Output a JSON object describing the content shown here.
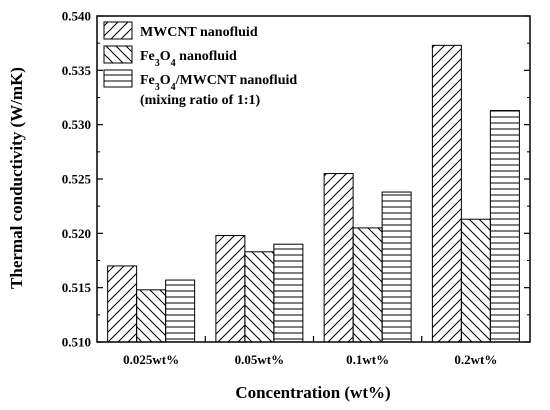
{
  "chart_data": {
    "type": "bar",
    "title": "",
    "xlabel": "Concentration (wt%)",
    "ylabel": "Thermal conductivity (W/mK)",
    "categories": [
      "0.025wt%",
      "0.05wt%",
      "0.1wt%",
      "0.2wt%"
    ],
    "series": [
      {
        "name": "MWCNT nanofluid",
        "values": [
          0.517,
          0.5198,
          0.5255,
          0.5373
        ],
        "pattern": "diagonal-up"
      },
      {
        "name": "Fe3O4 nanofluid",
        "values": [
          0.5148,
          0.5183,
          0.5205,
          0.5213
        ],
        "pattern": "diagonal-down"
      },
      {
        "name": "Fe3O4/MWCNT nanofluid",
        "values": [
          0.5157,
          0.519,
          0.5238,
          0.5313
        ],
        "pattern": "horizontal"
      }
    ],
    "legend_note": "(mixing ratio of 1:1)",
    "ylim": [
      0.51,
      0.54
    ],
    "yticks": [
      "0.510",
      "0.515",
      "0.520",
      "0.525",
      "0.530",
      "0.535",
      "0.540"
    ],
    "grid": false,
    "legend_position": "top-left",
    "colors": {
      "bar_fill": "#ffffff",
      "stroke": "#000000"
    }
  }
}
